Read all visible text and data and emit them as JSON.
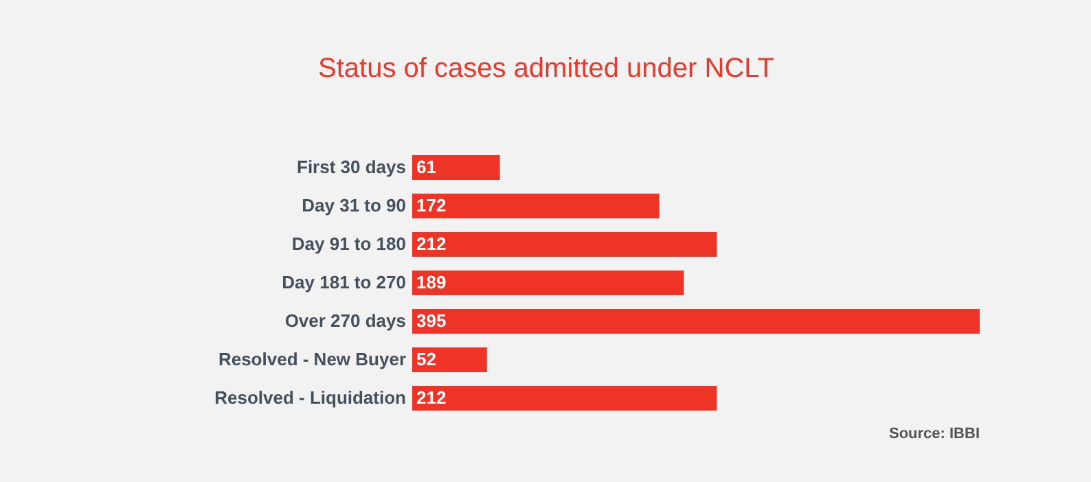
{
  "chart_data": {
    "type": "bar",
    "orientation": "horizontal",
    "title": "Status of cases admitted under NCLT",
    "categories": [
      "First 30 days",
      "Day 31 to 90",
      "Day 91 to 180",
      "Day 181 to 270",
      "Over 270 days",
      "Resolved - New Buyer",
      "Resolved - Liquidation"
    ],
    "values": [
      61,
      172,
      212,
      189,
      395,
      52,
      212
    ],
    "color": "#ee3427",
    "data_labels": true,
    "annotations": [
      "Source: IBBI"
    ]
  }
}
